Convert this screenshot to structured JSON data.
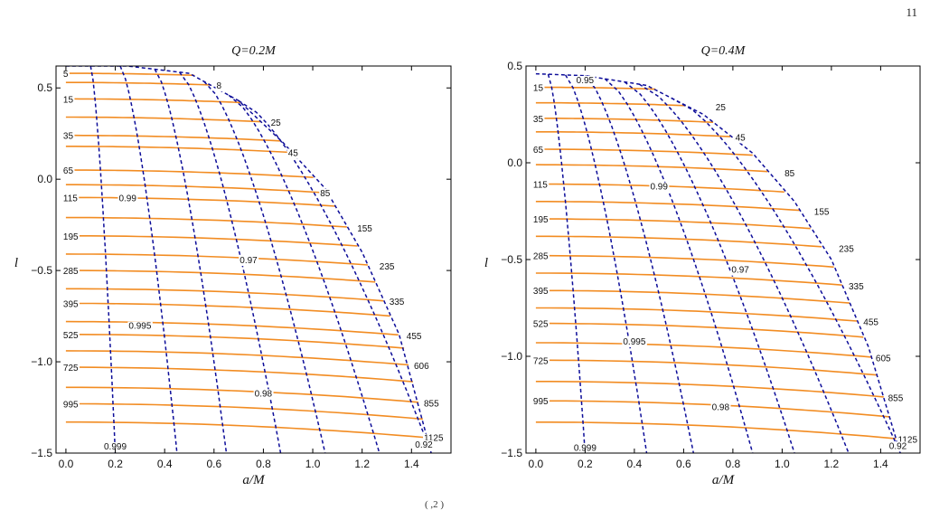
{
  "page_number": "11",
  "footer_text": "( ,2 )",
  "chart_data": [
    {
      "type": "contour",
      "title": "Q=0.2M",
      "xlabel": "a/M",
      "ylabel": "l",
      "xlim": [
        -0.04,
        1.56
      ],
      "ylim": [
        -1.5,
        0.62
      ],
      "x_ticks": [
        0.0,
        0.2,
        0.4,
        0.6,
        0.8,
        1.0,
        1.2,
        1.4
      ],
      "x_tick_labels": [
        "0.0",
        "0.2",
        "0.4",
        "0.6",
        "0.8",
        "1.0",
        "1.2",
        "1.4"
      ],
      "y_ticks": [
        0.5,
        0.0,
        -0.5,
        -1.0,
        -1.5
      ],
      "y_tick_labels": [
        "0.5",
        "0.0",
        "−0.5",
        "−1.0",
        "−1.5"
      ],
      "boundary": [
        [
          0.0,
          0.62
        ],
        [
          0.25,
          0.62
        ],
        [
          0.5,
          0.58
        ],
        [
          0.7,
          0.43
        ],
        [
          0.88,
          0.2
        ],
        [
          1.05,
          -0.05
        ],
        [
          1.2,
          -0.4
        ],
        [
          1.35,
          -0.85
        ],
        [
          1.48,
          -1.5
        ]
      ],
      "orange_contours": [
        {
          "label": "5",
          "l0": 0.58,
          "label_x": 0.0
        },
        {
          "label": "8",
          "l0": 0.53,
          "label_x": 0.61
        },
        {
          "label": "15",
          "l0": 0.44,
          "label_x": 0.0
        },
        {
          "label": "25",
          "l0": 0.34,
          "label_x": 0.83
        },
        {
          "label": "35",
          "l0": 0.24,
          "label_x": 0.0
        },
        {
          "label": "45",
          "l0": 0.18,
          "label_x": 0.9
        },
        {
          "label": "65",
          "l0": 0.05,
          "label_x": 0.0
        },
        {
          "label": "85",
          "l0": -0.03,
          "label_x": 1.03
        },
        {
          "label": "115",
          "l0": -0.1,
          "label_x": 0.0
        },
        {
          "label": "155",
          "l0": -0.21,
          "label_x": 1.18
        },
        {
          "label": "195",
          "l0": -0.31,
          "label_x": 0.0
        },
        {
          "label": "235",
          "l0": -0.41,
          "label_x": 1.27
        },
        {
          "label": "285",
          "l0": -0.5,
          "label_x": 0.0
        },
        {
          "label": "335",
          "l0": -0.6,
          "label_x": 1.31
        },
        {
          "label": "395",
          "l0": -0.68,
          "label_x": 0.0
        },
        {
          "label": "455",
          "l0": -0.78,
          "label_x": 1.38
        },
        {
          "label": "525",
          "l0": -0.85,
          "label_x": 0.0
        },
        {
          "label": "606",
          "l0": -0.94,
          "label_x": 1.41
        },
        {
          "label": "725",
          "l0": -1.03,
          "label_x": 0.0
        },
        {
          "label": "855",
          "l0": -1.14,
          "label_x": 1.45
        },
        {
          "label": "995",
          "l0": -1.23,
          "label_x": 0.0
        },
        {
          "label": "1125",
          "l0": -1.33,
          "label_x": 1.45
        }
      ],
      "blue_contours": [
        {
          "label": "0.999",
          "x_top": 0.1,
          "x_bottom": 0.2,
          "label_x": 0.2,
          "label_l": -1.46
        },
        {
          "label": "0.995",
          "x_top": 0.22,
          "x_bottom": 0.45,
          "label_x": 0.3,
          "label_l": -0.8
        },
        {
          "label": "0.99",
          "x_top": 0.36,
          "x_bottom": 0.65,
          "label_x": 0.25,
          "label_l": -0.1
        },
        {
          "label": "0.98",
          "x_top": 0.46,
          "x_bottom": 0.87,
          "label_x": 0.8,
          "label_l": -1.17
        },
        {
          "label": "0.97",
          "x_top": 0.56,
          "x_bottom": 1.05,
          "label_x": 0.74,
          "label_l": -0.44
        },
        {
          "label": "",
          "x_top": 0.66,
          "x_bottom": 1.27,
          "label_x": 0,
          "label_l": 0
        },
        {
          "label": "0.92",
          "x_top": 0.7,
          "x_bottom": 1.48,
          "label_x": 1.45,
          "label_l": -1.45
        }
      ]
    },
    {
      "type": "contour",
      "title": "Q=0.4M",
      "xlabel": "a/M",
      "ylabel": "l",
      "xlim": [
        -0.04,
        1.56
      ],
      "ylim": [
        -1.5,
        0.5
      ],
      "x_ticks": [
        0.0,
        0.2,
        0.4,
        0.6,
        0.8,
        1.0,
        1.2,
        1.4
      ],
      "x_tick_labels": [
        "0.0",
        "0.2",
        "0.4",
        "0.6",
        "0.8",
        "1.0",
        "1.2",
        "1.4"
      ],
      "y_ticks": [
        0.5,
        0.0,
        -0.5,
        -1.0,
        -1.5
      ],
      "y_tick_labels": [
        "0.5",
        "0.0",
        "−0.5",
        "−1.0",
        "−1.5"
      ],
      "boundary": [
        [
          0.0,
          0.46
        ],
        [
          0.2,
          0.45
        ],
        [
          0.45,
          0.4
        ],
        [
          0.68,
          0.25
        ],
        [
          0.88,
          0.05
        ],
        [
          1.05,
          -0.2
        ],
        [
          1.2,
          -0.5
        ],
        [
          1.35,
          -0.95
        ],
        [
          1.48,
          -1.5
        ]
      ],
      "orange_contours": [
        {
          "label": "15",
          "l0": 0.39,
          "label_x": 0.0
        },
        {
          "label": "25",
          "l0": 0.31,
          "label_x": 0.73
        },
        {
          "label": "35",
          "l0": 0.23,
          "label_x": 0.0
        },
        {
          "label": "45",
          "l0": 0.16,
          "label_x": 0.81
        },
        {
          "label": "65",
          "l0": 0.07,
          "label_x": 0.0
        },
        {
          "label": "85",
          "l0": -0.01,
          "label_x": 1.01
        },
        {
          "label": "115",
          "l0": -0.11,
          "label_x": 0.0
        },
        {
          "label": "155",
          "l0": -0.2,
          "label_x": 1.13
        },
        {
          "label": "195",
          "l0": -0.29,
          "label_x": 0.0
        },
        {
          "label": "235",
          "l0": -0.38,
          "label_x": 1.23
        },
        {
          "label": "285",
          "l0": -0.48,
          "label_x": 0.0
        },
        {
          "label": "335",
          "l0": -0.57,
          "label_x": 1.27
        },
        {
          "label": "395",
          "l0": -0.66,
          "label_x": 0.0
        },
        {
          "label": "455",
          "l0": -0.75,
          "label_x": 1.33
        },
        {
          "label": "525",
          "l0": -0.83,
          "label_x": 0.0
        },
        {
          "label": "605",
          "l0": -0.93,
          "label_x": 1.38
        },
        {
          "label": "725",
          "l0": -1.02,
          "label_x": 0.0
        },
        {
          "label": "855",
          "l0": -1.13,
          "label_x": 1.43
        },
        {
          "label": "995",
          "l0": -1.23,
          "label_x": 0.0
        },
        {
          "label": "1125",
          "l0": -1.34,
          "label_x": 1.47
        }
      ],
      "blue_contours": [
        {
          "label": "0.999",
          "x_top": 0.05,
          "x_bottom": 0.2,
          "label_x": 0.2,
          "label_l": -1.47
        },
        {
          "label": "0.995",
          "x_top": 0.12,
          "x_bottom": 0.45,
          "label_x": 0.4,
          "label_l": -0.92
        },
        {
          "label": "0.99",
          "x_top": 0.2,
          "x_bottom": 0.64,
          "label_x": 0.5,
          "label_l": -0.12
        },
        {
          "label": "0.98",
          "x_top": 0.28,
          "x_bottom": 0.88,
          "label_x": 0.75,
          "label_l": -1.26
        },
        {
          "label": "0.97",
          "x_top": 0.36,
          "x_bottom": 1.05,
          "label_x": 0.83,
          "label_l": -0.55
        },
        {
          "label": "0.95",
          "x_top": 0.42,
          "x_bottom": 1.27,
          "label_x": 0.2,
          "label_l": 0.43
        },
        {
          "label": "0.92",
          "x_top": 0.55,
          "x_bottom": 1.48,
          "label_x": 1.47,
          "label_l": -1.46
        }
      ]
    }
  ]
}
